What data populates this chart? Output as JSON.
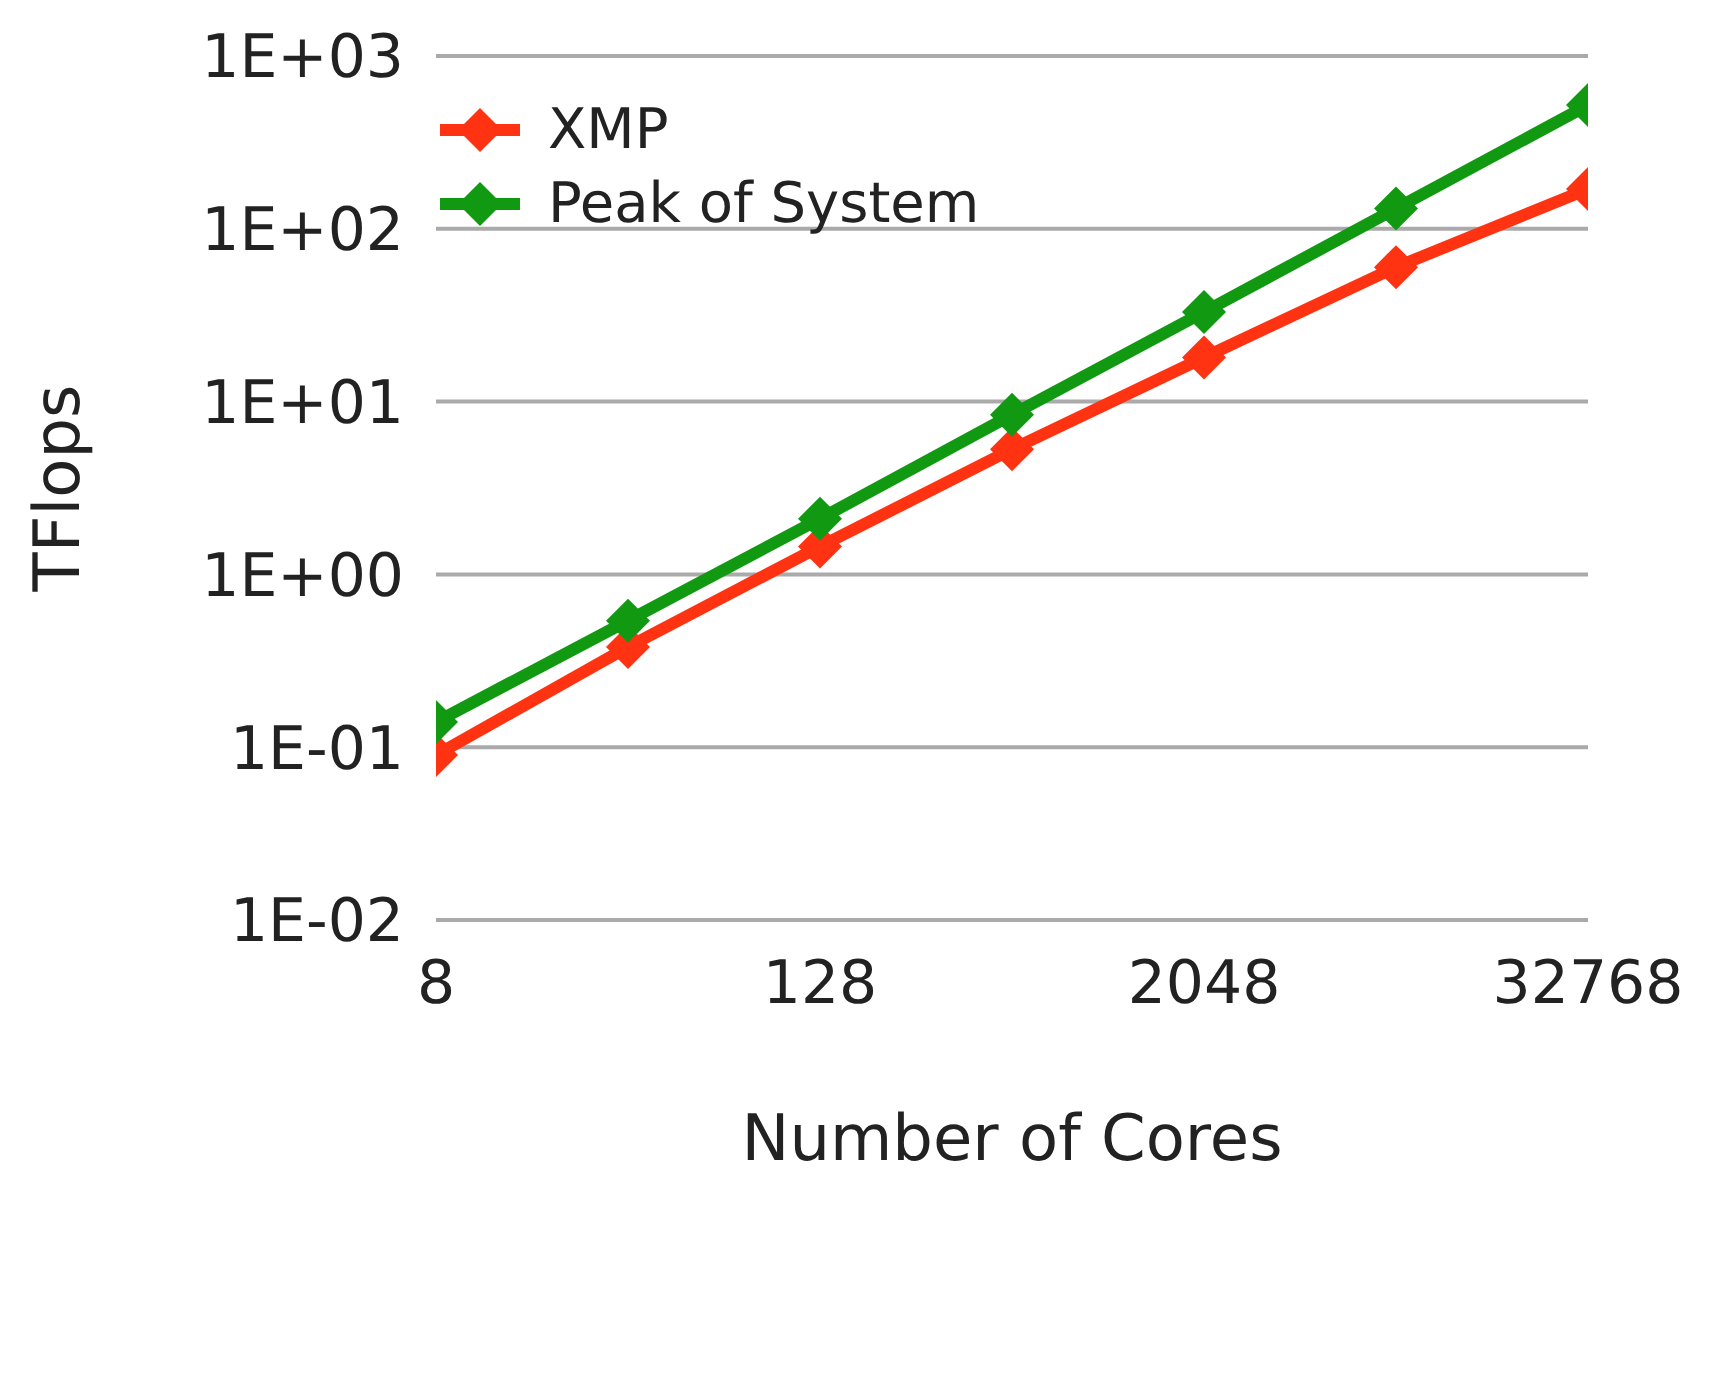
{
  "chart_data": {
    "type": "line",
    "xlabel": "Number of Cores",
    "ylabel": "TFlops",
    "x": [
      8,
      32,
      128,
      512,
      2048,
      8192,
      32768
    ],
    "series": [
      {
        "name": "XMP",
        "color": "#ff3311",
        "values": [
          0.09,
          0.38,
          1.45,
          5.3,
          18,
          60,
          170
        ]
      },
      {
        "name": "Peak of System",
        "color": "#119911",
        "values": [
          0.14,
          0.54,
          2.1,
          8.4,
          33,
          131,
          520
        ]
      }
    ],
    "xlim": [
      8,
      32768
    ],
    "xticks": [
      8,
      128,
      2048,
      32768
    ],
    "ylim": [
      0.01,
      1000
    ],
    "yticks": [
      {
        "value": 0.01,
        "label": "1E-02"
      },
      {
        "value": 0.1,
        "label": "1E-01"
      },
      {
        "value": 1,
        "label": "1E+00"
      },
      {
        "value": 10,
        "label": "1E+01"
      },
      {
        "value": 100,
        "label": "1E+02"
      },
      {
        "value": 1000,
        "label": "1E+03"
      }
    ],
    "log": "xy",
    "grid": "y",
    "legend": "top left",
    "marker": "diamond",
    "line_style": "solid"
  }
}
